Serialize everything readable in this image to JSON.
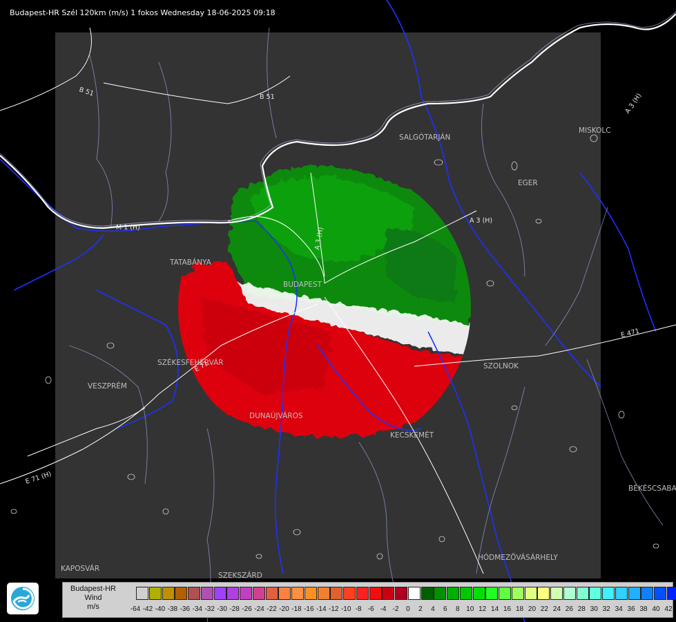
{
  "header": {
    "title": "Budapest-HR Szél 120km (m/s) 1 fokos Wednesday 18-06-2025 09:18"
  },
  "map": {
    "places": [
      "SALGÓTARJÁN",
      "EGER",
      "MISKOLC",
      "TATABÁNYA",
      "BUDAPEST",
      "SZÉKESFEHÉRVÁR",
      "VESZPRÉM",
      "DUNAÚJVÁROS",
      "KECSKEMÉT",
      "SZOLNOK",
      "BÉKÉSCSABA",
      "HÓDMEZŐVÁSÁRHELY",
      "KAPOSVÁR",
      "SZEKSZÁRD"
    ],
    "roads": [
      "B 51",
      "B 51",
      "M 1 (H)",
      "A 3 (H)",
      "A 3 (H)",
      "E 71",
      "E 71 (H)",
      "E 471"
    ],
    "colors": {
      "background": "#000000",
      "radar_area": "#333333",
      "border": "#ffffff",
      "rivers": "#2030ff",
      "county_lines": "#9aa4d8",
      "roads": "#ffffff"
    }
  },
  "legend": {
    "line1": "Budapest-HR",
    "line2": "Wind",
    "line3": "m/s",
    "ticks": [
      "-64",
      "-42",
      "-40",
      "-38",
      "-36",
      "-34",
      "-32",
      "-30",
      "-28",
      "-26",
      "-24",
      "-22",
      "-20",
      "-18",
      "-16",
      "-14",
      "-12",
      "-10",
      "-8",
      "-6",
      "-4",
      "-2",
      "0",
      "2",
      "4",
      "6",
      "8",
      "10",
      "12",
      "14",
      "16",
      "18",
      "20",
      "22",
      "24",
      "26",
      "28",
      "30",
      "32",
      "34",
      "36",
      "38",
      "40",
      "42"
    ],
    "colors": [
      "#d0d0d0",
      "#b0b000",
      "#c09000",
      "#b06000",
      "#b05050",
      "#b050b0",
      "#a040ff",
      "#b040e0",
      "#c040c0",
      "#d04090",
      "#e06040",
      "#ff8040",
      "#ff9040",
      "#ff9020",
      "#f08030",
      "#e06030",
      "#ff4020",
      "#ff2020",
      "#ee1010",
      "#cc0010",
      "#b00020",
      "#ffffff",
      "#006000",
      "#009000",
      "#00b000",
      "#00c800",
      "#00e000",
      "#20ff20",
      "#60ff40",
      "#a0ff60",
      "#e0ff80",
      "#ffff80",
      "#d0ffb0",
      "#b0ffd0",
      "#80ffd0",
      "#60ffe0",
      "#40f0ff",
      "#30d0ff",
      "#20b0ff",
      "#1080ff",
      "#0050ff",
      "#0020ff",
      "#0000e0"
    ]
  }
}
